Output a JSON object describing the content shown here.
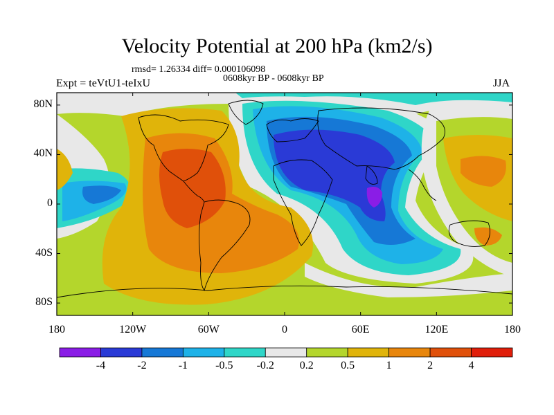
{
  "title": "Velocity Potential at 200 hPa (km2/s)",
  "stats_line": "rmsd= 1.26334 diff= 0.000106098",
  "period_line": "0608kyr BP - 0608kyr BP",
  "experiment_label": "Expt = teVtU1-teIxU",
  "season_label": "JJA",
  "axes": {
    "y_ticks": [
      {
        "label": "80N",
        "lat": 80
      },
      {
        "label": "40N",
        "lat": 40
      },
      {
        "label": "0",
        "lat": 0
      },
      {
        "label": "40S",
        "lat": -40
      },
      {
        "label": "80S",
        "lat": -80
      }
    ],
    "x_ticks": [
      {
        "label": "180",
        "lon": -180
      },
      {
        "label": "120W",
        "lon": -120
      },
      {
        "label": "60W",
        "lon": -60
      },
      {
        "label": "0",
        "lon": 0
      },
      {
        "label": "60E",
        "lon": 60
      },
      {
        "label": "120E",
        "lon": 120
      },
      {
        "label": "180",
        "lon": 180
      }
    ]
  },
  "colorbar": {
    "colors": [
      "#8a1de6",
      "#2a3ad6",
      "#1678d6",
      "#1eb2e8",
      "#2fd6c8",
      "#e8e8e8",
      "#b4d62c",
      "#e0b40a",
      "#e8860c",
      "#e0500a",
      "#e01e0a"
    ],
    "labels": [
      "-4",
      "-2",
      "-1",
      "-0.5",
      "-0.2",
      "0.2",
      "0.5",
      "1",
      "2",
      "4"
    ]
  },
  "colors": {
    "map_background": "#b4d62c",
    "coast_line": "#000000"
  }
}
